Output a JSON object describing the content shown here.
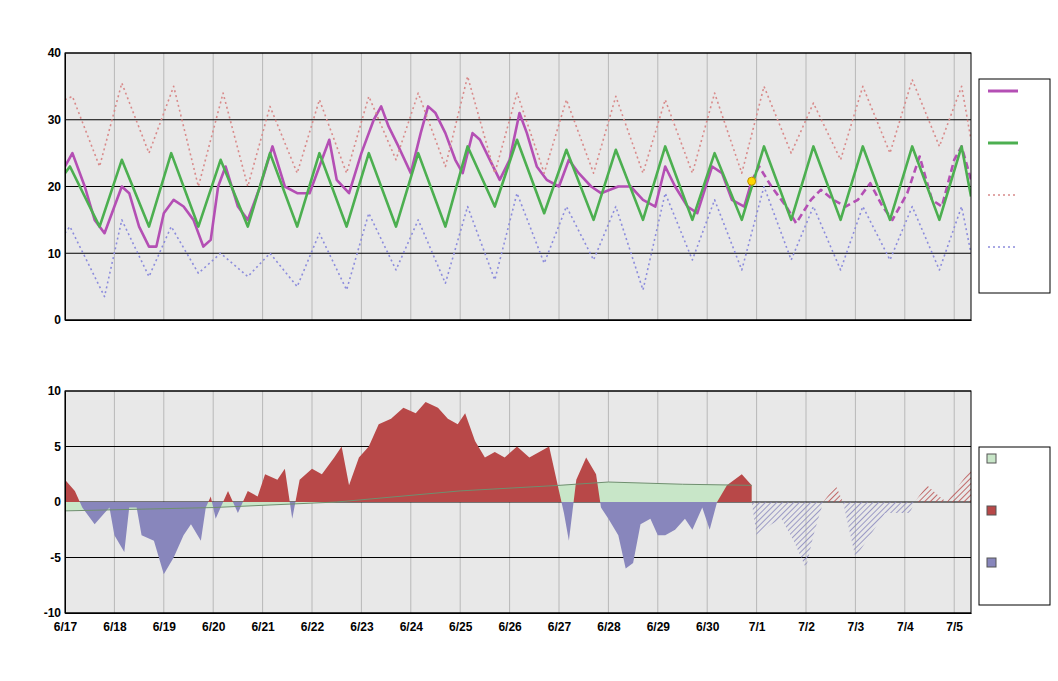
{
  "chart_data": [
    {
      "type": "line",
      "xlim": [
        0,
        18.34
      ],
      "xticks": [
        0,
        1,
        2,
        3,
        4,
        5,
        6,
        7,
        8,
        9,
        10,
        11,
        12,
        13,
        14,
        15,
        16,
        17,
        18
      ],
      "ylim": [
        0,
        40
      ],
      "yticks": [
        0,
        10,
        20,
        30,
        40
      ],
      "grid": true,
      "tick_labels": "y",
      "legend": "right",
      "series": [
        {
          "type": "line",
          "color": "#b44fb4",
          "line_style": "solid",
          "x": [
            0,
            0.15,
            0.4,
            0.6,
            0.8,
            1.0,
            1.15,
            1.3,
            1.5,
            1.7,
            1.85,
            2.0,
            2.2,
            2.4,
            2.6,
            2.8,
            2.95,
            3.1,
            3.25,
            3.5,
            3.7,
            3.95,
            4.2,
            4.45,
            4.7,
            4.95,
            5.2,
            5.35,
            5.5,
            5.75,
            6.0,
            6.25,
            6.4,
            6.55,
            6.75,
            7.0,
            7.2,
            7.35,
            7.5,
            7.7,
            7.9,
            8.05,
            8.25,
            8.4,
            8.6,
            8.8,
            9.0,
            9.2,
            9.35,
            9.55,
            9.75,
            10.0,
            10.2,
            10.4,
            10.65,
            10.85,
            11.2,
            11.45,
            11.7,
            11.95,
            12.15,
            12.35,
            12.6,
            12.8,
            13.1,
            13.3,
            13.5,
            13.75,
            13.9
          ],
          "values": [
            23,
            25,
            20,
            15,
            13,
            17,
            20,
            19,
            14,
            11,
            11,
            16,
            18,
            17,
            15,
            11,
            12,
            20,
            23,
            17,
            15,
            20,
            26,
            20,
            19,
            19,
            24,
            27,
            21,
            19,
            25,
            30,
            32,
            29,
            26,
            22,
            28,
            32,
            31,
            28,
            24,
            22,
            28,
            27,
            24,
            21,
            24,
            31,
            28,
            23,
            21,
            20,
            24,
            22,
            20,
            19,
            20,
            20,
            18,
            17,
            23,
            20,
            17,
            16,
            23,
            22,
            18,
            17,
            20.8
          ]
        },
        {
          "type": "line",
          "color": "#b44fb4",
          "line_style": "dashed",
          "x": [
            13.9,
            14.05,
            14.3,
            14.6,
            14.8,
            15.1,
            15.3,
            15.55,
            15.8,
            16.05,
            16.3,
            16.55,
            16.75,
            17.05,
            17.3,
            17.55,
            17.75,
            18.0,
            18.15,
            18.34
          ],
          "values": [
            20.8,
            23,
            20,
            17,
            14.5,
            18,
            19.5,
            18,
            17,
            18,
            20.5,
            17,
            15,
            19,
            24.5,
            18,
            17,
            24,
            26,
            21
          ]
        },
        {
          "type": "line",
          "color": "#4caf50",
          "line_style": "solid",
          "x": [
            0,
            0.1,
            0.7,
            1.15,
            1.7,
            2.15,
            2.7,
            3.15,
            3.7,
            4.15,
            4.7,
            5.15,
            5.7,
            6.15,
            6.7,
            7.15,
            7.7,
            8.15,
            8.7,
            9.15,
            9.7,
            10.15,
            10.7,
            11.15,
            11.7,
            12.15,
            12.7,
            13.15,
            13.7,
            14.15,
            14.7,
            15.15,
            15.7,
            16.15,
            16.7,
            17.15,
            17.7,
            18.15,
            18.34
          ],
          "values": [
            22,
            23,
            14,
            24,
            14,
            25,
            14,
            24,
            14,
            25,
            14,
            25,
            14,
            25,
            14,
            25,
            14,
            26,
            17,
            27,
            16,
            25.5,
            15,
            25.5,
            15,
            26,
            15,
            25,
            15,
            26,
            15,
            26,
            15,
            26,
            15,
            26,
            15,
            26,
            18.5
          ]
        },
        {
          "type": "line",
          "color": "#d88a8a",
          "line_style": "dotted",
          "x": [
            0,
            0.15,
            0.7,
            1.15,
            1.7,
            2.2,
            2.7,
            3.2,
            3.7,
            4.15,
            4.7,
            5.15,
            5.7,
            6.15,
            6.7,
            7.15,
            7.7,
            8.15,
            8.7,
            9.15,
            9.7,
            10.15,
            10.7,
            11.15,
            11.7,
            12.15,
            12.7,
            13.15,
            13.7,
            14.15,
            14.7,
            15.15,
            15.7,
            16.15,
            16.7,
            17.15,
            17.7,
            18.15,
            18.34
          ],
          "values": [
            33,
            33.5,
            23,
            35.5,
            25,
            35,
            20,
            34,
            20,
            32,
            22,
            33,
            22,
            33.5,
            24,
            34,
            23,
            36.5,
            22,
            34,
            22,
            33,
            22,
            33.5,
            22,
            33,
            22,
            34,
            22,
            35,
            25,
            32.5,
            24,
            35,
            25,
            36,
            26,
            35,
            27
          ]
        },
        {
          "type": "line",
          "color": "#8c8cdc",
          "line_style": "dotted",
          "x": [
            0,
            0.1,
            0.8,
            1.15,
            1.7,
            2.15,
            2.7,
            3.15,
            3.7,
            4.15,
            4.7,
            5.15,
            5.7,
            6.15,
            6.7,
            7.15,
            7.7,
            8.15,
            8.7,
            9.15,
            9.7,
            10.15,
            10.7,
            11.15,
            11.7,
            12.15,
            12.7,
            13.15,
            13.7,
            14.15,
            14.7,
            15.15,
            15.7,
            16.15,
            16.7,
            17.15,
            17.7,
            18.15,
            18.34
          ],
          "values": [
            13,
            14,
            3.5,
            15,
            6.5,
            14,
            7,
            10,
            6.5,
            10,
            5,
            13,
            4.5,
            16,
            7.5,
            15,
            5.5,
            17,
            6,
            19,
            8.5,
            17,
            9,
            17,
            4.5,
            19,
            9,
            18,
            7.5,
            20,
            9,
            17,
            7.5,
            17,
            9,
            17,
            7.5,
            17,
            10
          ]
        },
        {
          "type": "scatter",
          "color": "#ffd700",
          "marker": "circle",
          "x": [
            13.9
          ],
          "values": [
            20.8
          ]
        }
      ]
    },
    {
      "type": "area",
      "xlim": [
        0,
        18.34
      ],
      "xticks": [
        {
          "value": 0,
          "label": "6/17"
        },
        {
          "value": 1,
          "label": "6/18"
        },
        {
          "value": 2,
          "label": "6/19"
        },
        {
          "value": 3,
          "label": "6/20"
        },
        {
          "value": 4,
          "label": "6/21"
        },
        {
          "value": 5,
          "label": "6/22"
        },
        {
          "value": 6,
          "label": "6/23"
        },
        {
          "value": 7,
          "label": "6/24"
        },
        {
          "value": 8,
          "label": "6/25"
        },
        {
          "value": 9,
          "label": "6/26"
        },
        {
          "value": 10,
          "label": "6/27"
        },
        {
          "value": 11,
          "label": "6/28"
        },
        {
          "value": 12,
          "label": "6/29"
        },
        {
          "value": 13,
          "label": "6/30"
        },
        {
          "value": 14,
          "label": "7/1"
        },
        {
          "value": 15,
          "label": "7/2"
        },
        {
          "value": 16,
          "label": "7/3"
        },
        {
          "value": 17,
          "label": "7/4"
        },
        {
          "value": 18,
          "label": "7/5"
        }
      ],
      "ylim": [
        -10,
        10
      ],
      "yticks": [
        -10,
        -5,
        0,
        5,
        10
      ],
      "grid": true,
      "legend": "right",
      "series": [
        {
          "type": "area",
          "color": "#c8e6c8",
          "x": [
            0,
            3,
            5.5,
            8,
            10,
            11,
            12.5,
            13.9
          ],
          "values": [
            -0.8,
            -0.5,
            0,
            1,
            1.5,
            1.8,
            1.6,
            1.5
          ]
        },
        {
          "type": "area",
          "colors": [
            "#b84848",
            "#8886bc"
          ],
          "x": [
            0,
            0.2,
            0.35,
            0.6,
            0.8,
            0.9,
            1.0,
            1.2,
            1.3,
            1.45,
            1.55,
            1.8,
            2.0,
            2.2,
            2.4,
            2.55,
            2.75,
            2.85,
            2.95,
            3.05,
            3.3,
            3.5,
            3.7,
            3.9,
            4.05,
            4.3,
            4.45,
            4.6,
            4.75,
            5.0,
            5.2,
            5.45,
            5.6,
            5.75,
            5.95,
            6.15,
            6.35,
            6.6,
            6.85,
            7.1,
            7.3,
            7.55,
            7.75,
            7.95,
            8.1,
            8.3,
            8.5,
            8.7,
            8.9,
            9.15,
            9.4,
            9.6,
            9.8,
            10.0,
            10.1,
            10.2,
            10.35,
            10.55,
            10.75,
            10.85,
            11.0,
            11.2,
            11.35,
            11.5,
            11.65,
            11.85,
            12.0,
            12.15,
            12.35,
            12.55,
            12.7,
            12.9,
            13.05,
            13.2,
            13.4,
            13.7,
            13.9
          ],
          "values": [
            2,
            1,
            -0.5,
            -2,
            -1,
            -0.5,
            -3,
            -4.5,
            -0.5,
            -0.5,
            -3,
            -3.5,
            -6.5,
            -5,
            -3,
            -2,
            -3.5,
            -0.5,
            0.5,
            -1.5,
            1,
            -1,
            1,
            0.5,
            2.5,
            2,
            3,
            -1.5,
            2,
            3,
            2.5,
            4,
            5,
            1.5,
            4,
            5,
            7,
            7.5,
            8.5,
            8,
            9,
            8.5,
            7.5,
            7,
            8,
            5.5,
            4,
            4.5,
            4,
            5,
            4,
            4.5,
            5,
            1,
            -1,
            -3.5,
            2,
            4,
            2.5,
            -0.5,
            -1.5,
            -3,
            -6,
            -5.5,
            -2,
            -1.5,
            -3,
            -3,
            -2.5,
            -1.5,
            -2.5,
            -0.5,
            -2.5,
            0,
            1.5,
            2.5,
            1.5
          ]
        },
        {
          "type": "area",
          "colors": [
            "#b84848",
            "#8886bc"
          ],
          "line_style": "hatched",
          "x": [
            13.9,
            14.0,
            14.3,
            14.5,
            14.75,
            15.0,
            15.15,
            15.35,
            15.6,
            15.75,
            15.85,
            16.0,
            16.3,
            16.6,
            16.8,
            17.1,
            17.2,
            17.45,
            17.7,
            17.85,
            18.34
          ],
          "values": [
            0,
            -3,
            -2,
            -1.5,
            -3.5,
            -6,
            -3,
            0,
            1.5,
            0,
            -2,
            -5,
            -3,
            -1,
            -1,
            -1,
            0,
            1.5,
            0.5,
            0,
            3
          ]
        }
      ]
    }
  ]
}
